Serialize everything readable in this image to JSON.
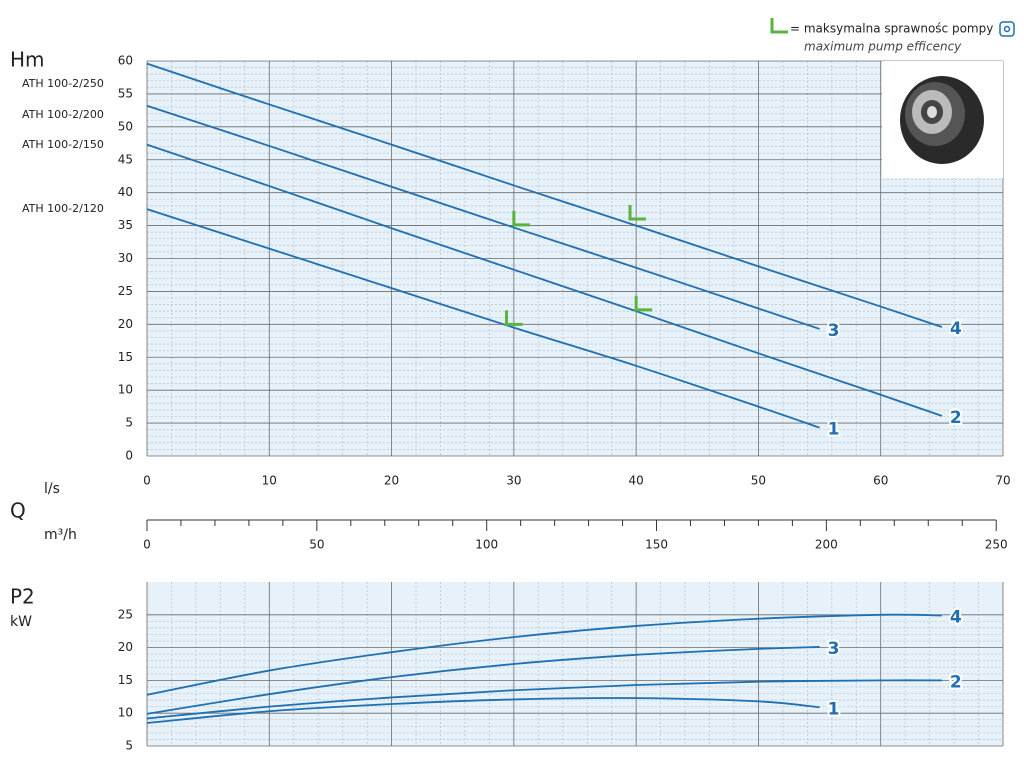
{
  "legend": {
    "text": "= maksymalna sprawnośc pompy",
    "subtext": "maximum pump efficency"
  },
  "chart_data": [
    {
      "type": "line",
      "ylabel": "Hm",
      "xlabel": "l/s",
      "x_symbol": "Q",
      "x2label": "m³/h",
      "xlim": [
        0,
        70
      ],
      "xticks": [
        0,
        10,
        20,
        30,
        40,
        50,
        60,
        70
      ],
      "ylim": [
        0,
        60
      ],
      "yticks": [
        0,
        5,
        10,
        15,
        20,
        25,
        30,
        35,
        40,
        45,
        50,
        55,
        60
      ],
      "x2lim": [
        0,
        252
      ],
      "x2ticks": [
        0,
        50,
        100,
        150,
        200,
        250
      ],
      "grid": true,
      "series": [
        {
          "name": "ATH 100-2/120",
          "label": "1",
          "color": "#1f6fb2",
          "x": [
            0,
            10,
            20,
            30,
            40,
            50,
            55
          ],
          "values": [
            37.5,
            31.5,
            25.5,
            19.5,
            13.7,
            7.5,
            4.3
          ]
        },
        {
          "name": "ATH 100-2/150",
          "label": "2",
          "color": "#1f6fb2",
          "x": [
            0,
            10,
            20,
            30,
            40,
            50,
            60,
            65
          ],
          "values": [
            47.3,
            41,
            34.6,
            28.3,
            22,
            15.6,
            9.3,
            6.1
          ]
        },
        {
          "name": "ATH 100-2/200",
          "label": "3",
          "color": "#1f6fb2",
          "x": [
            0,
            10,
            20,
            30,
            40,
            50,
            55
          ],
          "values": [
            53.2,
            47.1,
            40.9,
            34.7,
            28.6,
            22.4,
            19.3
          ]
        },
        {
          "name": "ATH 100-2/250",
          "label": "4",
          "color": "#1f6fb2",
          "x": [
            0,
            10,
            20,
            30,
            40,
            50,
            60,
            65
          ],
          "values": [
            59.6,
            53.4,
            47.3,
            41.1,
            35,
            28.8,
            22.7,
            19.6
          ]
        }
      ],
      "efficiency_points": {
        "color": "#5ab43c",
        "x": [
          29.4,
          30,
          39.5,
          40
        ],
        "values": [
          20,
          35.1,
          36,
          22.2
        ]
      }
    },
    {
      "type": "line",
      "ylabel": "P2",
      "yunit": "kW",
      "xlim": [
        0,
        70
      ],
      "xticks": [
        0,
        10,
        20,
        30,
        40,
        50,
        60,
        70
      ],
      "ylim": [
        5,
        30
      ],
      "yticks": [
        5,
        10,
        15,
        20,
        25
      ],
      "grid": true,
      "series": [
        {
          "label": "1",
          "color": "#1f6fb2",
          "x": [
            0,
            10,
            20,
            30,
            40,
            50,
            55
          ],
          "values": [
            8.5,
            10.3,
            11.4,
            12.1,
            12.3,
            11.8,
            10.9
          ]
        },
        {
          "label": "2",
          "color": "#1f6fb2",
          "x": [
            0,
            10,
            20,
            30,
            40,
            50,
            60,
            65
          ],
          "values": [
            9.2,
            11,
            12.4,
            13.5,
            14.3,
            14.8,
            15,
            15
          ]
        },
        {
          "label": "3",
          "color": "#1f6fb2",
          "x": [
            0,
            10,
            20,
            30,
            40,
            50,
            55
          ],
          "values": [
            9.9,
            12.9,
            15.5,
            17.5,
            18.9,
            19.8,
            20.1
          ]
        },
        {
          "label": "4",
          "color": "#1f6fb2",
          "x": [
            0,
            10,
            20,
            30,
            40,
            50,
            60,
            65
          ],
          "values": [
            12.8,
            16.5,
            19.3,
            21.6,
            23.3,
            24.4,
            25,
            24.9
          ]
        }
      ]
    }
  ]
}
